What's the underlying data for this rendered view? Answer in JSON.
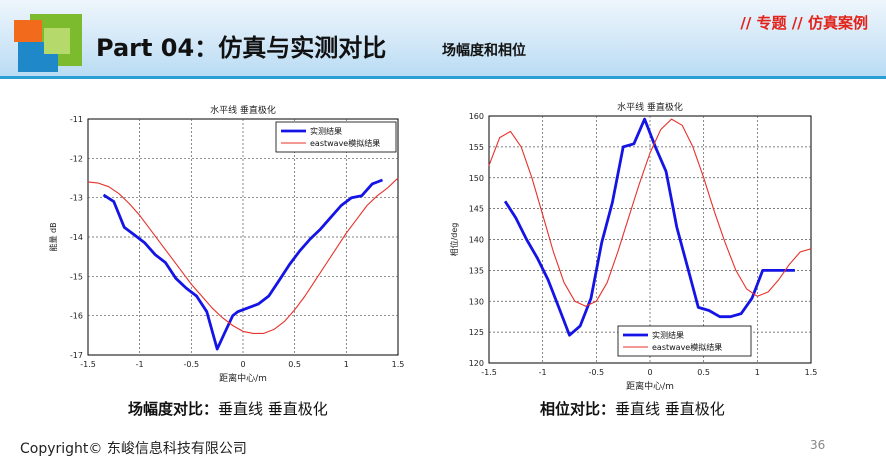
{
  "header": {
    "title": "Part 04：仿真与实测对比",
    "subtitle": "场幅度和相位",
    "tag": "// 专题 // 仿真案例"
  },
  "captions": {
    "left_bold": "场幅度对比：",
    "left_rest": "垂直线 垂直极化",
    "right_bold": "相位对比：",
    "right_rest": "垂直线 垂直极化"
  },
  "footer": {
    "copyright": "Copyright© 东峻信息科技有限公司",
    "page_number": "36"
  },
  "colors": {
    "measured": "#1414e6",
    "simulated": "#e8312a",
    "header_line": "#2a9fd6",
    "tag": "#e32219"
  },
  "chart_data": [
    {
      "type": "line",
      "title": "水平线 垂直极化",
      "xlabel": "距离中心/m",
      "ylabel": "能量 dB",
      "xlim": [
        -1.5,
        1.5
      ],
      "ylim": [
        -17,
        -11
      ],
      "xticks": [
        -1.5,
        -1,
        -0.5,
        0,
        0.5,
        1,
        1.5
      ],
      "yticks": [
        -11,
        -12,
        -13,
        -14,
        -15,
        -16,
        -17
      ],
      "grid": true,
      "legend_position": "top-right",
      "series": [
        {
          "name": "实测结果",
          "color": "#1414e6",
          "x": [
            -1.35,
            -1.25,
            -1.15,
            -1.05,
            -0.95,
            -0.85,
            -0.75,
            -0.65,
            -0.55,
            -0.45,
            -0.35,
            -0.25,
            -0.18,
            -0.1,
            -0.05,
            0.05,
            0.15,
            0.25,
            0.35,
            0.45,
            0.55,
            0.65,
            0.75,
            0.85,
            0.95,
            1.05,
            1.15,
            1.25,
            1.35
          ],
          "y": [
            -12.93,
            -13.1,
            -13.75,
            -13.95,
            -14.15,
            -14.45,
            -14.65,
            -15.05,
            -15.3,
            -15.5,
            -15.9,
            -16.85,
            -16.45,
            -16.0,
            -15.9,
            -15.8,
            -15.7,
            -15.5,
            -15.1,
            -14.7,
            -14.35,
            -14.05,
            -13.8,
            -13.5,
            -13.2,
            -13.0,
            -12.95,
            -12.65,
            -12.55
          ]
        },
        {
          "name": "eastwave模拟结果",
          "color": "#e8312a",
          "x": [
            -1.5,
            -1.4,
            -1.3,
            -1.2,
            -1.1,
            -1.0,
            -0.9,
            -0.8,
            -0.7,
            -0.6,
            -0.5,
            -0.4,
            -0.3,
            -0.2,
            -0.1,
            0.0,
            0.1,
            0.2,
            0.3,
            0.4,
            0.5,
            0.6,
            0.7,
            0.8,
            0.9,
            1.0,
            1.1,
            1.2,
            1.3,
            1.4,
            1.5
          ],
          "y": [
            -12.6,
            -12.63,
            -12.72,
            -12.9,
            -13.15,
            -13.45,
            -13.8,
            -14.15,
            -14.5,
            -14.85,
            -15.2,
            -15.5,
            -15.8,
            -16.05,
            -16.25,
            -16.4,
            -16.45,
            -16.45,
            -16.35,
            -16.15,
            -15.85,
            -15.5,
            -15.1,
            -14.7,
            -14.3,
            -13.9,
            -13.55,
            -13.2,
            -12.95,
            -12.75,
            -12.5
          ]
        }
      ]
    },
    {
      "type": "line",
      "title": "水平线 垂直极化",
      "xlabel": "距离中心/m",
      "ylabel": "相位/deg",
      "xlim": [
        -1.5,
        1.5
      ],
      "ylim": [
        120,
        160
      ],
      "xticks": [
        -1.5,
        -1,
        -0.5,
        0,
        0.5,
        1,
        1.5
      ],
      "yticks": [
        160,
        155,
        150,
        145,
        140,
        135,
        130,
        125,
        120
      ],
      "grid": true,
      "legend_position": "bottom-right",
      "series": [
        {
          "name": "实测结果",
          "color": "#1414e6",
          "x": [
            -1.35,
            -1.25,
            -1.15,
            -1.05,
            -0.95,
            -0.85,
            -0.75,
            -0.65,
            -0.55,
            -0.45,
            -0.35,
            -0.25,
            -0.15,
            -0.05,
            0.05,
            0.15,
            0.25,
            0.35,
            0.45,
            0.55,
            0.65,
            0.75,
            0.85,
            0.95,
            1.05,
            1.15,
            1.25,
            1.35
          ],
          "y": [
            146.2,
            143.5,
            140.0,
            137.0,
            133.5,
            129.0,
            124.5,
            126.0,
            130.5,
            139.5,
            146.0,
            155.0,
            155.5,
            159.5,
            155.0,
            151.0,
            142.0,
            135.5,
            129.0,
            128.5,
            127.5,
            127.5,
            128.0,
            130.5,
            135.0,
            135.0,
            135.0,
            135.0
          ]
        },
        {
          "name": "eastwave模拟结果",
          "color": "#e8312a",
          "x": [
            -1.5,
            -1.4,
            -1.3,
            -1.2,
            -1.1,
            -1.0,
            -0.9,
            -0.8,
            -0.7,
            -0.6,
            -0.5,
            -0.4,
            -0.3,
            -0.2,
            -0.1,
            0.0,
            0.1,
            0.2,
            0.3,
            0.4,
            0.5,
            0.6,
            0.7,
            0.8,
            0.9,
            1.0,
            1.1,
            1.2,
            1.3,
            1.4,
            1.5
          ],
          "y": [
            152.0,
            156.5,
            157.5,
            155.0,
            150.0,
            144.0,
            138.0,
            133.0,
            130.0,
            129.2,
            130.0,
            133.0,
            138.0,
            143.5,
            149.0,
            154.0,
            157.8,
            159.5,
            158.5,
            155.0,
            150.0,
            144.5,
            139.5,
            135.0,
            132.0,
            130.8,
            131.5,
            133.5,
            136.0,
            138.0,
            138.5
          ]
        }
      ]
    }
  ]
}
